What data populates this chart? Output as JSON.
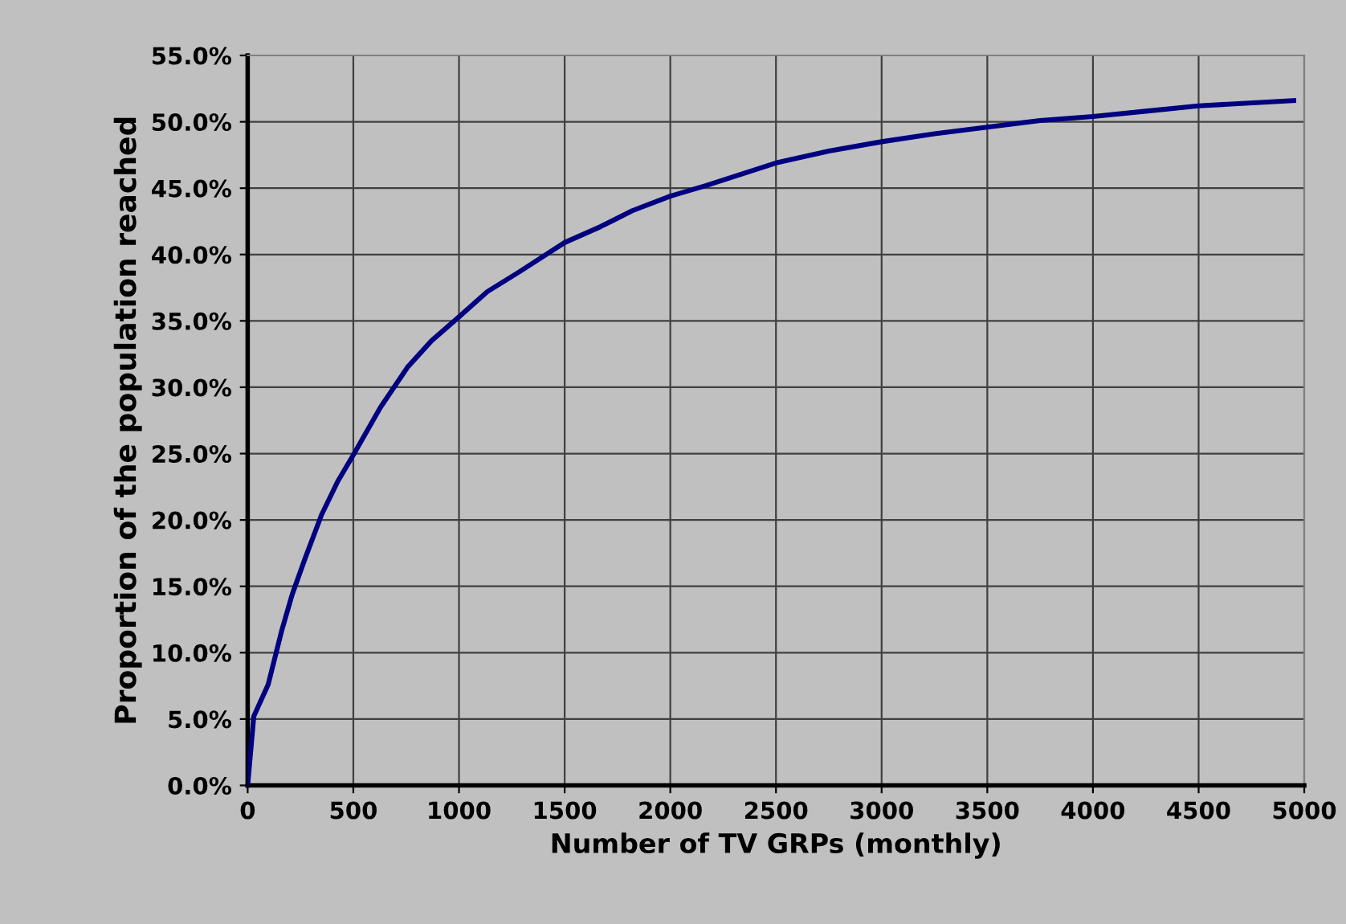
{
  "chart_data": {
    "type": "line",
    "xlabel": "Number of TV GRPs (monthly)",
    "ylabel": "Proportion of the population reached",
    "series": [
      {
        "color": "#000080",
        "x": [
          0,
          29,
          97,
          160,
          211,
          274,
          350,
          426,
          500,
          629,
          756,
          870,
          1000,
          1134,
          1286,
          1500,
          1670,
          1820,
          2000,
          2170,
          2500,
          2750,
          3000,
          3250,
          3500,
          3750,
          4000,
          4250,
          4500,
          4950
        ],
        "values": [
          0,
          5.2,
          7.6,
          11.6,
          14.4,
          17.2,
          20.4,
          22.9,
          24.9,
          28.5,
          31.5,
          33.5,
          35.3,
          37.2,
          38.7,
          40.9,
          42.1,
          43.3,
          44.4,
          45.2,
          46.9,
          47.8,
          48.5,
          49.1,
          49.6,
          50.1,
          50.4,
          50.8,
          51.2,
          51.6
        ]
      }
    ],
    "xlim": [
      0,
      5000
    ],
    "xticks": [
      0,
      500,
      1000,
      1500,
      2000,
      2500,
      3000,
      3500,
      4000,
      4500,
      5000
    ],
    "ylim": [
      0,
      55
    ],
    "yticks": [
      {
        "value": 0,
        "label": "0.0%"
      },
      {
        "value": 5,
        "label": "5.0%"
      },
      {
        "value": 10,
        "label": "10.0%"
      },
      {
        "value": 15,
        "label": "15.0%"
      },
      {
        "value": 20,
        "label": "20.0%"
      },
      {
        "value": 25,
        "label": "25.0%"
      },
      {
        "value": 30,
        "label": "30.0%"
      },
      {
        "value": 35,
        "label": "35.0%"
      },
      {
        "value": 40,
        "label": "40.0%"
      },
      {
        "value": 45,
        "label": "45.0%"
      },
      {
        "value": 50,
        "label": "50.0%"
      },
      {
        "value": 55,
        "label": "55.0%"
      }
    ],
    "grid": true,
    "legend": false,
    "marker": "none",
    "line_style": "solid"
  }
}
